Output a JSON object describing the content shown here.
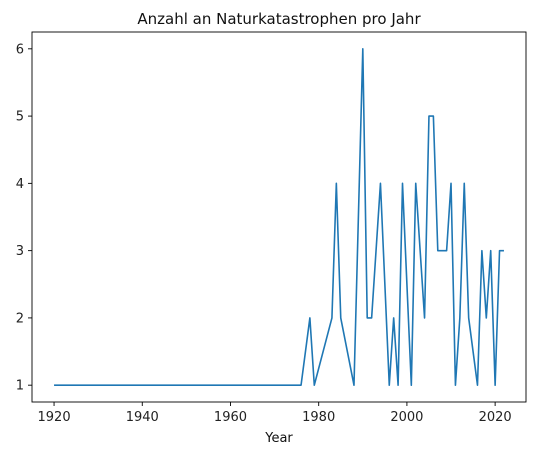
{
  "chart_data": {
    "type": "line",
    "title": "Anzahl an Naturkatastrophen pro Jahr",
    "xlabel": "Year",
    "ylabel": "",
    "xlim": [
      1915,
      2027
    ],
    "ylim": [
      0.75,
      6.25
    ],
    "xticks": [
      1920,
      1940,
      1960,
      1980,
      2000,
      2020
    ],
    "yticks": [
      1,
      2,
      3,
      4,
      5,
      6
    ],
    "grid": false,
    "color": "#1f77b4",
    "series": [
      {
        "x": [
          1920,
          1976,
          1978,
          1979,
          1983,
          1984,
          1985,
          1988,
          1990,
          1991,
          1992,
          1994,
          1996,
          1997,
          1998,
          1999,
          2001,
          2002,
          2004,
          2005,
          2006,
          2007,
          2009,
          2010,
          2011,
          2012,
          2013,
          2014,
          2016,
          2017,
          2018,
          2019,
          2020,
          2021,
          2022
        ],
        "y": [
          1,
          1,
          2,
          1,
          2,
          4,
          2,
          1,
          6,
          2,
          2,
          4,
          1,
          2,
          1,
          4,
          1,
          4,
          2,
          5,
          5,
          3,
          3,
          4,
          1,
          2,
          4,
          2,
          1,
          3,
          2,
          3,
          1,
          3,
          3
        ]
      }
    ]
  }
}
